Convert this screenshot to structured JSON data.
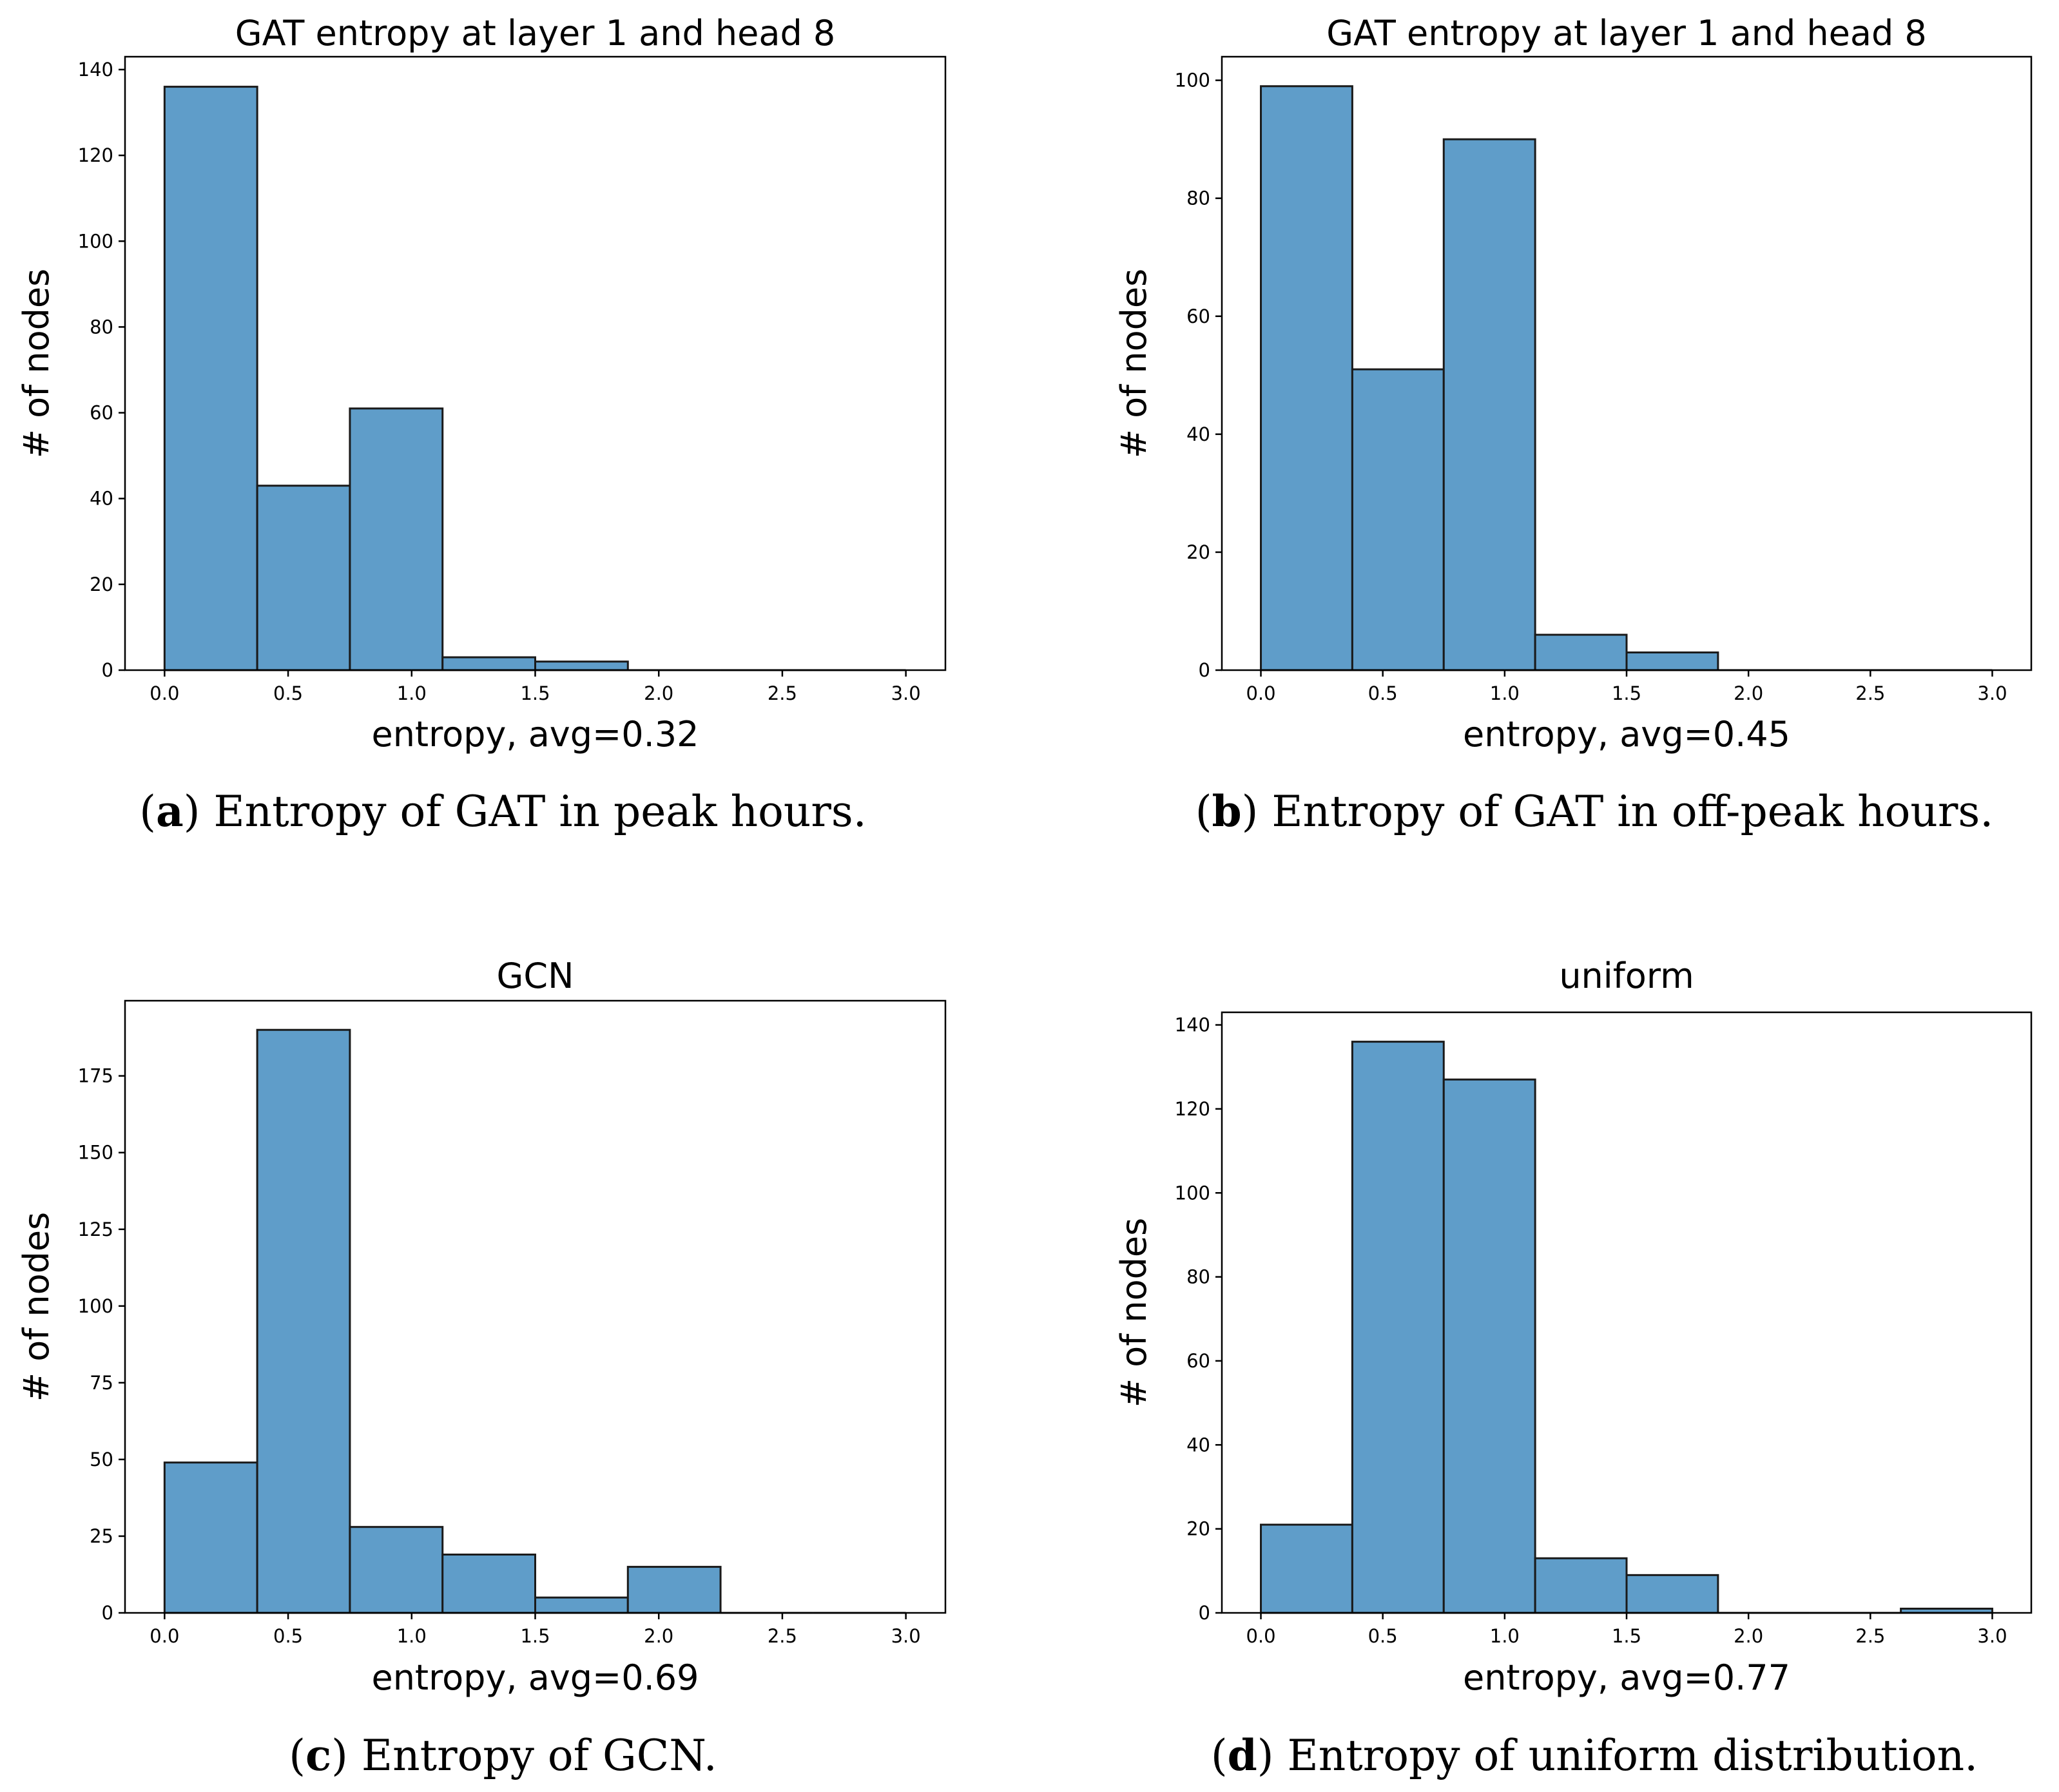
{
  "chart_data": [
    {
      "type": "bar",
      "title": "GAT entropy at layer 1 and head 8",
      "xlabel": "entropy, avg=0.32",
      "ylabel": "# of nodes",
      "bin_edges": [
        0,
        0.375,
        0.75,
        1.125,
        1.5,
        1.875,
        2.25,
        2.625,
        3.0
      ],
      "values": [
        136,
        43,
        61,
        3,
        2,
        0,
        0,
        0
      ],
      "xlim": [
        -0.16,
        3.16
      ],
      "ylim": [
        0,
        143
      ],
      "xticks": [
        "0.0",
        "0.5",
        "1.0",
        "1.5",
        "2.0",
        "2.5",
        "3.0"
      ],
      "yticks": [
        0,
        20,
        40,
        60,
        80,
        100,
        120,
        140
      ],
      "caption_letter": "a",
      "caption_text": " Entropy of GAT in peak hours.",
      "color": "#5f9dc9"
    },
    {
      "type": "bar",
      "title": "GAT entropy at layer 1 and head 8",
      "xlabel": "entropy, avg=0.45",
      "ylabel": "# of nodes",
      "bin_edges": [
        0,
        0.375,
        0.75,
        1.125,
        1.5,
        1.875,
        2.25,
        2.625,
        3.0
      ],
      "values": [
        99,
        51,
        90,
        6,
        3,
        0,
        0,
        0
      ],
      "xlim": [
        -0.16,
        3.16
      ],
      "ylim": [
        0,
        104
      ],
      "xticks": [
        "0.0",
        "0.5",
        "1.0",
        "1.5",
        "2.0",
        "2.5",
        "3.0"
      ],
      "yticks": [
        0,
        20,
        40,
        60,
        80,
        100
      ],
      "caption_letter": "b",
      "caption_text": " Entropy of GAT in off-peak hours.",
      "color": "#5f9dc9"
    },
    {
      "type": "bar",
      "title": "GCN",
      "xlabel": "entropy, avg=0.69",
      "ylabel": "# of nodes",
      "bin_edges": [
        0,
        0.375,
        0.75,
        1.125,
        1.5,
        1.875,
        2.25,
        2.625,
        3.0
      ],
      "values": [
        49,
        190,
        28,
        19,
        5,
        15,
        0,
        0
      ],
      "xlim": [
        -0.16,
        3.16
      ],
      "ylim": [
        0,
        199.5
      ],
      "xticks": [
        "0.0",
        "0.5",
        "1.0",
        "1.5",
        "2.0",
        "2.5",
        "3.0"
      ],
      "yticks": [
        0,
        25,
        50,
        75,
        100,
        125,
        150,
        175
      ],
      "caption_letter": "c",
      "caption_text": " Entropy of GCN.",
      "color": "#5f9dc9"
    },
    {
      "type": "bar",
      "title": "uniform",
      "xlabel": "entropy, avg=0.77",
      "ylabel": "# of nodes",
      "bin_edges": [
        0,
        0.375,
        0.75,
        1.125,
        1.5,
        1.875,
        2.25,
        2.625,
        3.0
      ],
      "values": [
        21,
        136,
        127,
        13,
        9,
        0,
        0,
        1
      ],
      "xlim": [
        -0.16,
        3.16
      ],
      "ylim": [
        0,
        143
      ],
      "xticks": [
        "0.0",
        "0.5",
        "1.0",
        "1.5",
        "2.0",
        "2.5",
        "3.0"
      ],
      "yticks": [
        0,
        20,
        40,
        60,
        80,
        100,
        120,
        140
      ],
      "caption_letter": "d",
      "caption_text": " Entropy of uniform distribution.",
      "color": "#5f9dc9"
    }
  ]
}
